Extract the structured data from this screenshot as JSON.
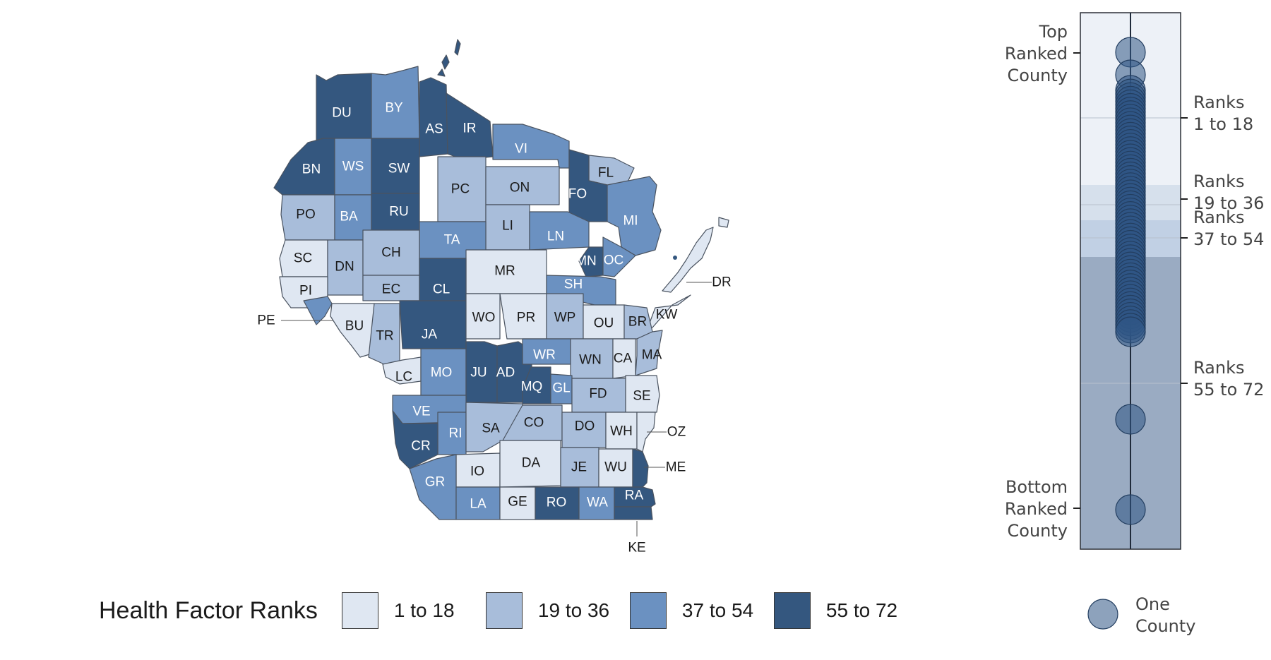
{
  "legend": {
    "title": "Health Factor Ranks",
    "items": [
      {
        "label": "1 to 18",
        "color": "#dfe7f2"
      },
      {
        "label": "19 to 36",
        "color": "#a8bdda"
      },
      {
        "label": "37 to 54",
        "color": "#6b91c1"
      },
      {
        "label": "55 to 72",
        "color": "#34577f"
      }
    ]
  },
  "counties": [
    {
      "abbr": "DU",
      "rank": 4
    },
    {
      "abbr": "BY",
      "rank": 3
    },
    {
      "abbr": "AS",
      "rank": 4
    },
    {
      "abbr": "IR",
      "rank": 4
    },
    {
      "abbr": "VI",
      "rank": 3
    },
    {
      "abbr": "FL",
      "rank": 2
    },
    {
      "abbr": "FO",
      "rank": 4
    },
    {
      "abbr": "BN",
      "rank": 4
    },
    {
      "abbr": "WS",
      "rank": 3
    },
    {
      "abbr": "SW",
      "rank": 4
    },
    {
      "abbr": "PC",
      "rank": 2
    },
    {
      "abbr": "ON",
      "rank": 2
    },
    {
      "abbr": "MI",
      "rank": 3
    },
    {
      "abbr": "PO",
      "rank": 2
    },
    {
      "abbr": "BA",
      "rank": 3
    },
    {
      "abbr": "RU",
      "rank": 4
    },
    {
      "abbr": "LI",
      "rank": 2
    },
    {
      "abbr": "LN",
      "rank": 3
    },
    {
      "abbr": "TA",
      "rank": 3
    },
    {
      "abbr": "SC",
      "rank": 1
    },
    {
      "abbr": "DN",
      "rank": 2
    },
    {
      "abbr": "CH",
      "rank": 2
    },
    {
      "abbr": "MN",
      "rank": 4
    },
    {
      "abbr": "OC",
      "rank": 3
    },
    {
      "abbr": "MR",
      "rank": 1
    },
    {
      "abbr": "PI",
      "rank": 1
    },
    {
      "abbr": "EC",
      "rank": 2
    },
    {
      "abbr": "CL",
      "rank": 4
    },
    {
      "abbr": "SH",
      "rank": 3
    },
    {
      "abbr": "DR",
      "rank": 1
    },
    {
      "abbr": "KW",
      "rank": 1
    },
    {
      "abbr": "PE",
      "rank": 3
    },
    {
      "abbr": "BU",
      "rank": 1
    },
    {
      "abbr": "TR",
      "rank": 2
    },
    {
      "abbr": "JA",
      "rank": 4
    },
    {
      "abbr": "WO",
      "rank": 1
    },
    {
      "abbr": "PR",
      "rank": 1
    },
    {
      "abbr": "WP",
      "rank": 2
    },
    {
      "abbr": "OU",
      "rank": 1
    },
    {
      "abbr": "BR",
      "rank": 2
    },
    {
      "abbr": "MA",
      "rank": 2
    },
    {
      "abbr": "LC",
      "rank": 1
    },
    {
      "abbr": "MO",
      "rank": 3
    },
    {
      "abbr": "JU",
      "rank": 4
    },
    {
      "abbr": "AD",
      "rank": 4
    },
    {
      "abbr": "WR",
      "rank": 3
    },
    {
      "abbr": "WN",
      "rank": 2
    },
    {
      "abbr": "CA",
      "rank": 1
    },
    {
      "abbr": "MQ",
      "rank": 4
    },
    {
      "abbr": "GL",
      "rank": 3
    },
    {
      "abbr": "FD",
      "rank": 2
    },
    {
      "abbr": "SE",
      "rank": 1
    },
    {
      "abbr": "VE",
      "rank": 3
    },
    {
      "abbr": "RI",
      "rank": 3
    },
    {
      "abbr": "SA",
      "rank": 2
    },
    {
      "abbr": "CO",
      "rank": 2
    },
    {
      "abbr": "DO",
      "rank": 2
    },
    {
      "abbr": "WH",
      "rank": 1
    },
    {
      "abbr": "OZ",
      "rank": 1
    },
    {
      "abbr": "CR",
      "rank": 4
    },
    {
      "abbr": "IO",
      "rank": 1
    },
    {
      "abbr": "DA",
      "rank": 1
    },
    {
      "abbr": "JE",
      "rank": 2
    },
    {
      "abbr": "WU",
      "rank": 1
    },
    {
      "abbr": "ME",
      "rank": 4
    },
    {
      "abbr": "GR",
      "rank": 3
    },
    {
      "abbr": "LA",
      "rank": 3
    },
    {
      "abbr": "GE",
      "rank": 1
    },
    {
      "abbr": "RO",
      "rank": 4
    },
    {
      "abbr": "WA",
      "rank": 3
    },
    {
      "abbr": "RA",
      "rank": 4
    },
    {
      "abbr": "KE",
      "rank": 4
    }
  ],
  "rank_chart": {
    "top_label": [
      "Top",
      "Ranked",
      "County"
    ],
    "bottom_label": [
      "Bottom",
      "Ranked",
      "County"
    ],
    "band_labels": [
      [
        "Ranks",
        "1 to 18"
      ],
      [
        "Ranks",
        "19 to 36"
      ],
      [
        "Ranks",
        "37 to 54"
      ],
      [
        "Ranks",
        "55 to 72"
      ]
    ],
    "band_colors": [
      "#edf1f7",
      "#d6e0ec",
      "#c1d0e4",
      "#9aabc2"
    ],
    "circle_fill": "#2f5585",
    "count": 72,
    "key_label": [
      "One",
      "County"
    ]
  }
}
